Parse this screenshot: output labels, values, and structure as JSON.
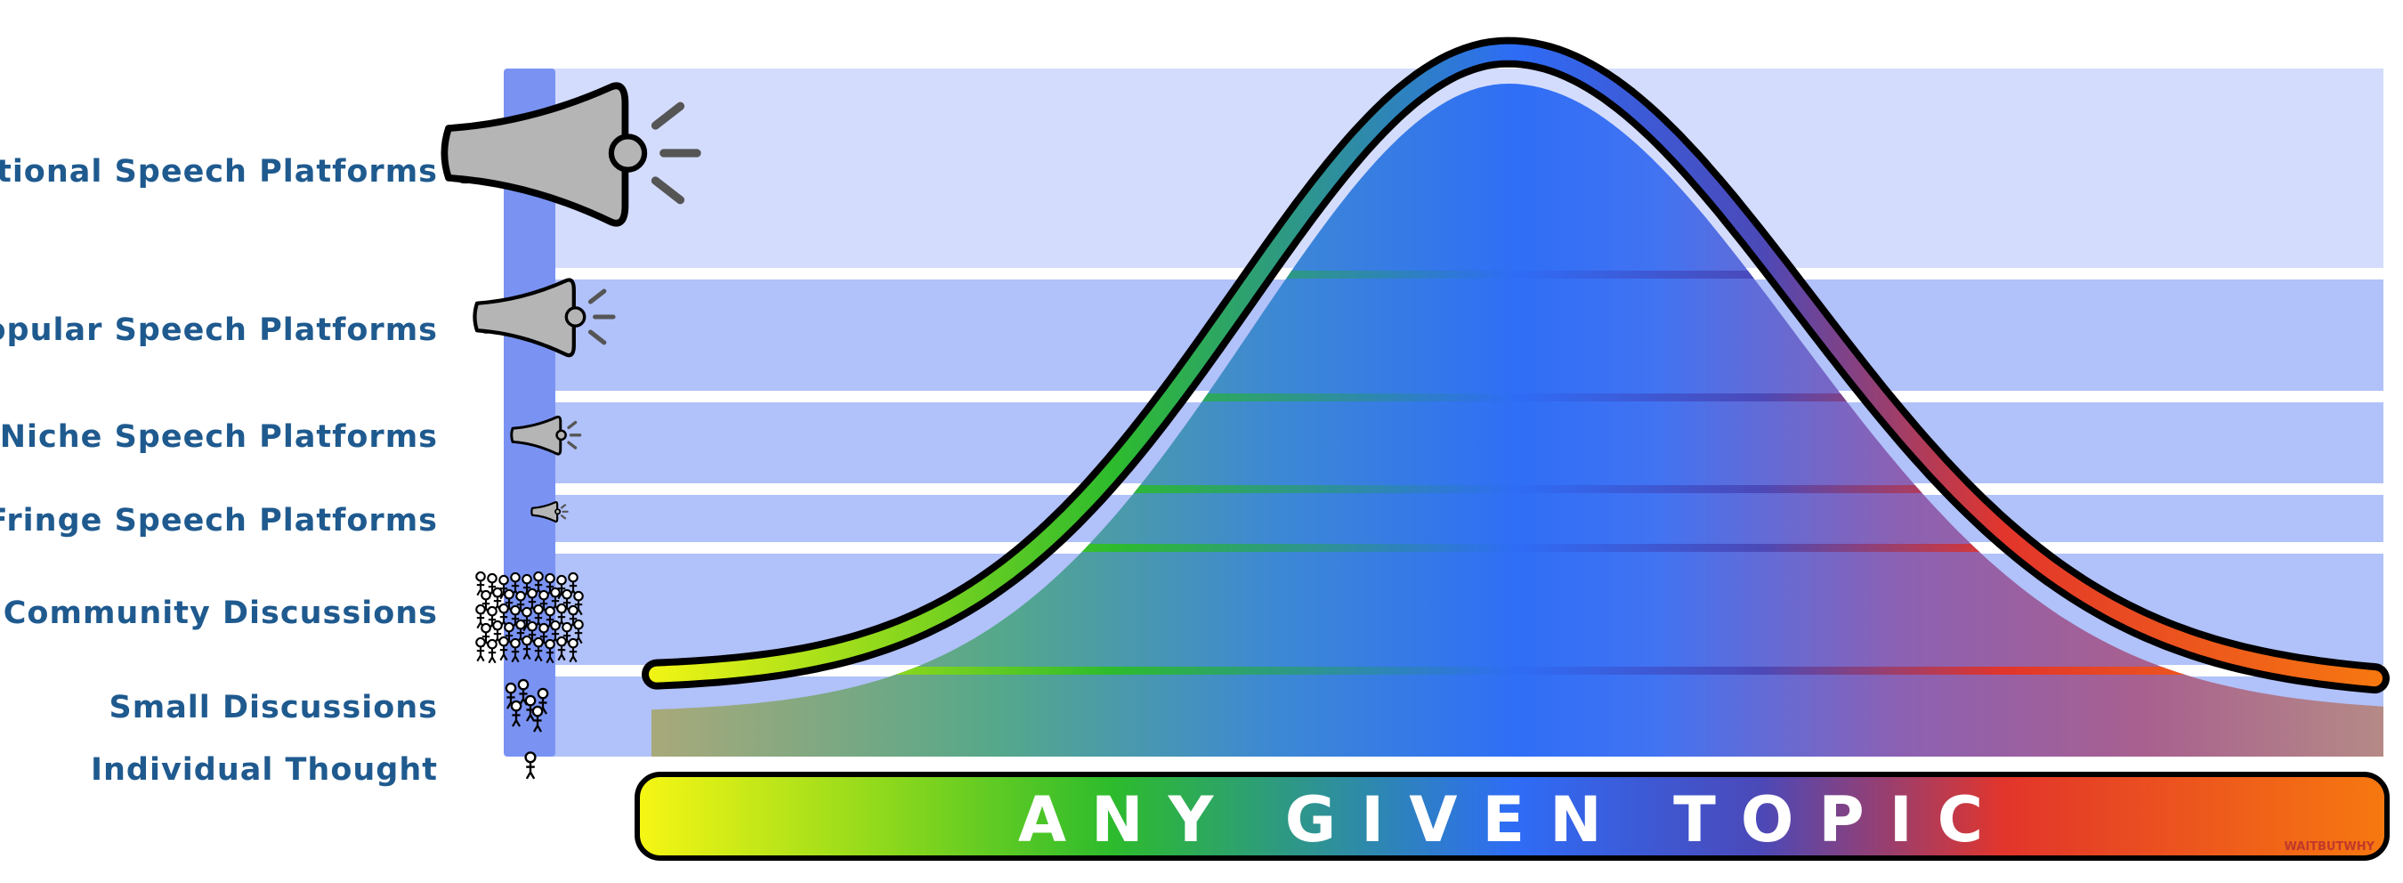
{
  "tiers": [
    "National Speech Platforms",
    "Popular Speech Platforms",
    "Niche Speech Platforms",
    "Fringe Speech Platforms",
    "Community Discussions",
    "Small Discussions",
    "Individual Thought"
  ],
  "topic_bar": {
    "label": "ANY GIVEN TOPIC"
  },
  "credit": "WAITBUTWHY",
  "icons": [
    "megaphone-large-icon",
    "megaphone-medium-icon",
    "megaphone-small-icon",
    "megaphone-tiny-icon",
    "crowd-icon",
    "small-group-icon",
    "single-person-icon"
  ],
  "colors": {
    "label_text": "#1f5a8f",
    "band_top": "#d3dcfc",
    "band": "#b1c1f9",
    "vertical_axis": "#7a93f3",
    "spectrum": [
      "#f6f614",
      "#2dbb2d",
      "#2e6cf6",
      "#e2352b",
      "#f7790f"
    ]
  }
}
